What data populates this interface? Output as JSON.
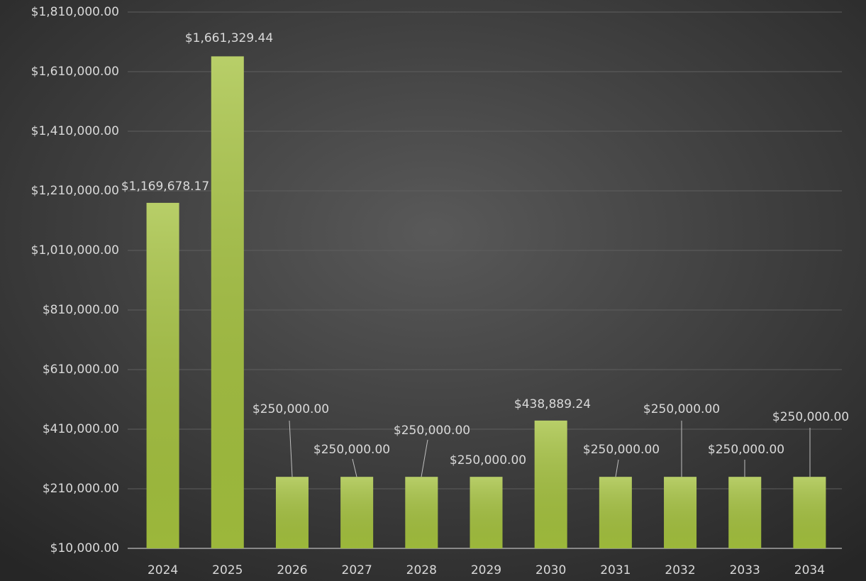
{
  "chart_data": {
    "type": "bar",
    "categories": [
      "2024",
      "2025",
      "2026",
      "2027",
      "2028",
      "2029",
      "2030",
      "2031",
      "2032",
      "2033",
      "2034"
    ],
    "values": [
      1169678.17,
      1661329.44,
      250000,
      250000,
      250000,
      250000,
      438889.24,
      250000,
      250000,
      250000,
      250000
    ],
    "value_labels": [
      "$1,169,678.17",
      "$1,661,329.44",
      "$250,000.00",
      "$250,000.00",
      "$250,000.00",
      "$250,000.00",
      "$438,889.24",
      "$250,000.00",
      "$250,000.00",
      "$250,000.00",
      "$250,000.00"
    ],
    "color": "#a4c13e",
    "ylim": [
      10000,
      1810000
    ],
    "yticks": [
      {
        "value": 10000,
        "label": "$10,000.00"
      },
      {
        "value": 210000,
        "label": "$210,000.00"
      },
      {
        "value": 410000,
        "label": "$410,000.00"
      },
      {
        "value": 610000,
        "label": "$610,000.00"
      },
      {
        "value": 810000,
        "label": "$810,000.00"
      },
      {
        "value": 1010000,
        "label": "$1,010,000.00"
      },
      {
        "value": 1210000,
        "label": "$1,210,000.00"
      },
      {
        "value": 1410000,
        "label": "$1,410,000.00"
      },
      {
        "value": 1610000,
        "label": "$1,610,000.00"
      },
      {
        "value": 1810000,
        "label": "$1,810,000.00"
      }
    ],
    "grid": true
  }
}
